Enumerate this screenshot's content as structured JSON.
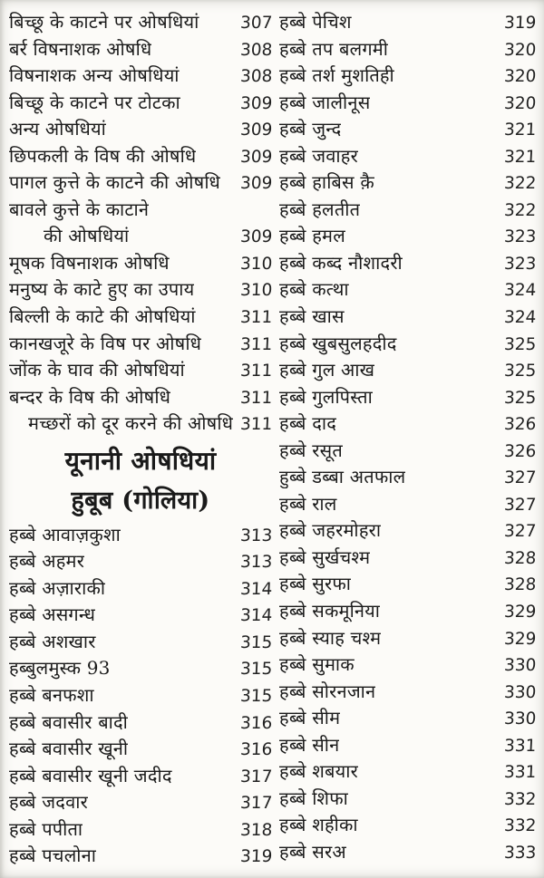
{
  "page": {
    "background_color": "#fcfbf8",
    "text_color": "#1a1a1a",
    "kind": "book-table-of-contents-scan",
    "language": "Hindi"
  },
  "left_column": {
    "items": [
      {
        "type": "entry",
        "label": "बिच्छू के काटने पर ओषधियां",
        "page": "307"
      },
      {
        "type": "entry",
        "label": "बर्र विषनाशक ओषधि",
        "page": "308"
      },
      {
        "type": "entry",
        "label": "विषनाशक अन्य ओषधियां",
        "page": "308"
      },
      {
        "type": "entry",
        "label": "बिच्छू के काटने पर टोटका",
        "page": "309"
      },
      {
        "type": "entry",
        "label": "अन्य ओषधियां",
        "page": "309"
      },
      {
        "type": "entry",
        "label": "छिपकली के विष की ओषधि",
        "page": "309"
      },
      {
        "type": "entry",
        "label": "पागल कुत्ते के काटने की ओषधि",
        "page": "309"
      },
      {
        "type": "entry",
        "label": "बावले कुत्ते के काटाने",
        "page": ""
      },
      {
        "type": "entry",
        "label": "की ओषधियां",
        "page": "309",
        "indent": 1
      },
      {
        "type": "entry",
        "label": "मूषक विषनाशक ओषधि",
        "page": "310"
      },
      {
        "type": "entry",
        "label": "मनुष्य के काटे हुए का उपाय",
        "page": "310"
      },
      {
        "type": "entry",
        "label": "बिल्ली के काटे की ओषधियां",
        "page": "311"
      },
      {
        "type": "entry",
        "label": "कानखजूरे के विष पर ओषधि",
        "page": "311"
      },
      {
        "type": "entry",
        "label": "जोंक के घाव की ओषधियां",
        "page": "311"
      },
      {
        "type": "entry",
        "label": "बन्दर के विष की ओषधि",
        "page": "311"
      },
      {
        "type": "entry",
        "label": "मच्छरों को दूर करने की ओषधि",
        "page": "311",
        "indent": 2,
        "attached": true
      },
      {
        "type": "heading",
        "label": "यूनानी ओषधियां"
      },
      {
        "type": "subheading",
        "label": "हुबूब (गोलिया)"
      },
      {
        "type": "entry",
        "label": "हब्बे आवाज़कुशा",
        "page": "313"
      },
      {
        "type": "entry",
        "label": "हब्बे अहमर",
        "page": "313"
      },
      {
        "type": "entry",
        "label": "हब्बे अज़ाराकी",
        "page": "314"
      },
      {
        "type": "entry",
        "label": "हब्बे असगन्ध",
        "page": "314"
      },
      {
        "type": "entry",
        "label": "हब्बे अशखार",
        "page": "315"
      },
      {
        "type": "entry",
        "label": "हब्बुलमुस्क 93",
        "page": "315"
      },
      {
        "type": "entry",
        "label": "हब्बे बनफशा",
        "page": "315"
      },
      {
        "type": "entry",
        "label": "हब्बे बवासीर बादी",
        "page": "316"
      },
      {
        "type": "entry",
        "label": "हब्बे बवासीर खूनी",
        "page": "316"
      },
      {
        "type": "entry",
        "label": "हब्बे बवासीर खूनी जदीद",
        "page": "317"
      },
      {
        "type": "entry",
        "label": "हब्बे जदवार",
        "page": "317"
      },
      {
        "type": "entry",
        "label": "हब्बे पपीता",
        "page": "318"
      },
      {
        "type": "entry",
        "label": "हब्बे पचलोना",
        "page": "319"
      }
    ]
  },
  "right_column": {
    "items": [
      {
        "type": "entry",
        "label": "हब्बे पेचिश",
        "page": "319"
      },
      {
        "type": "entry",
        "label": "हब्बे तप बलगमी",
        "page": "320"
      },
      {
        "type": "entry",
        "label": "हब्बे तर्श मुशतिही",
        "page": "320"
      },
      {
        "type": "entry",
        "label": "हब्बे जालीनूस",
        "page": "320"
      },
      {
        "type": "entry",
        "label": "हब्बे जुन्द",
        "page": "321"
      },
      {
        "type": "entry",
        "label": "हब्बे जवाहर",
        "page": "321"
      },
      {
        "type": "entry",
        "label": "हब्बे हाबिस क़ै",
        "page": "322"
      },
      {
        "type": "entry",
        "label": "हब्बे हलतीत",
        "page": "322"
      },
      {
        "type": "entry",
        "label": "हब्बे हमल",
        "page": "323"
      },
      {
        "type": "entry",
        "label": "हब्बे कब्द नौशादरी",
        "page": "323"
      },
      {
        "type": "entry",
        "label": "हब्बे कत्था",
        "page": "324"
      },
      {
        "type": "entry",
        "label": "हब्बे खास",
        "page": "324"
      },
      {
        "type": "entry",
        "label": "हब्बे खुबसुलहदीद",
        "page": "325"
      },
      {
        "type": "entry",
        "label": "हब्बे गुल आख",
        "page": "325"
      },
      {
        "type": "entry",
        "label": "हब्बे गुलपिस्ता",
        "page": "325"
      },
      {
        "type": "entry",
        "label": "हब्बे दाद",
        "page": "326"
      },
      {
        "type": "entry",
        "label": "हब्बे रसूत",
        "page": "326"
      },
      {
        "type": "entry",
        "label": "हुब्बे डब्बा अतफाल",
        "page": "327"
      },
      {
        "type": "entry",
        "label": "हब्बे राल",
        "page": "327"
      },
      {
        "type": "entry",
        "label": "हब्बे जहरमोहरा",
        "page": "327"
      },
      {
        "type": "entry",
        "label": "हब्बे सुर्खचश्म",
        "page": "328"
      },
      {
        "type": "entry",
        "label": "हब्बे सुरफा",
        "page": "328"
      },
      {
        "type": "entry",
        "label": "हब्बे सकमूनिया",
        "page": "329"
      },
      {
        "type": "entry",
        "label": "हब्बे स्याह चश्म",
        "page": "329"
      },
      {
        "type": "entry",
        "label": "हब्बे सुमाक",
        "page": "330"
      },
      {
        "type": "entry",
        "label": "हब्बे सोरनजान",
        "page": "330"
      },
      {
        "type": "entry",
        "label": "हब्बे सीम",
        "page": "330"
      },
      {
        "type": "entry",
        "label": "हब्बे सीन",
        "page": "331"
      },
      {
        "type": "entry",
        "label": "हब्बे शबयार",
        "page": "331"
      },
      {
        "type": "entry",
        "label": "हब्बे शिफा",
        "page": "332"
      },
      {
        "type": "entry",
        "label": "हब्बे शहीका",
        "page": "332"
      },
      {
        "type": "entry",
        "label": "हब्बे सरअ",
        "page": "333"
      }
    ]
  }
}
